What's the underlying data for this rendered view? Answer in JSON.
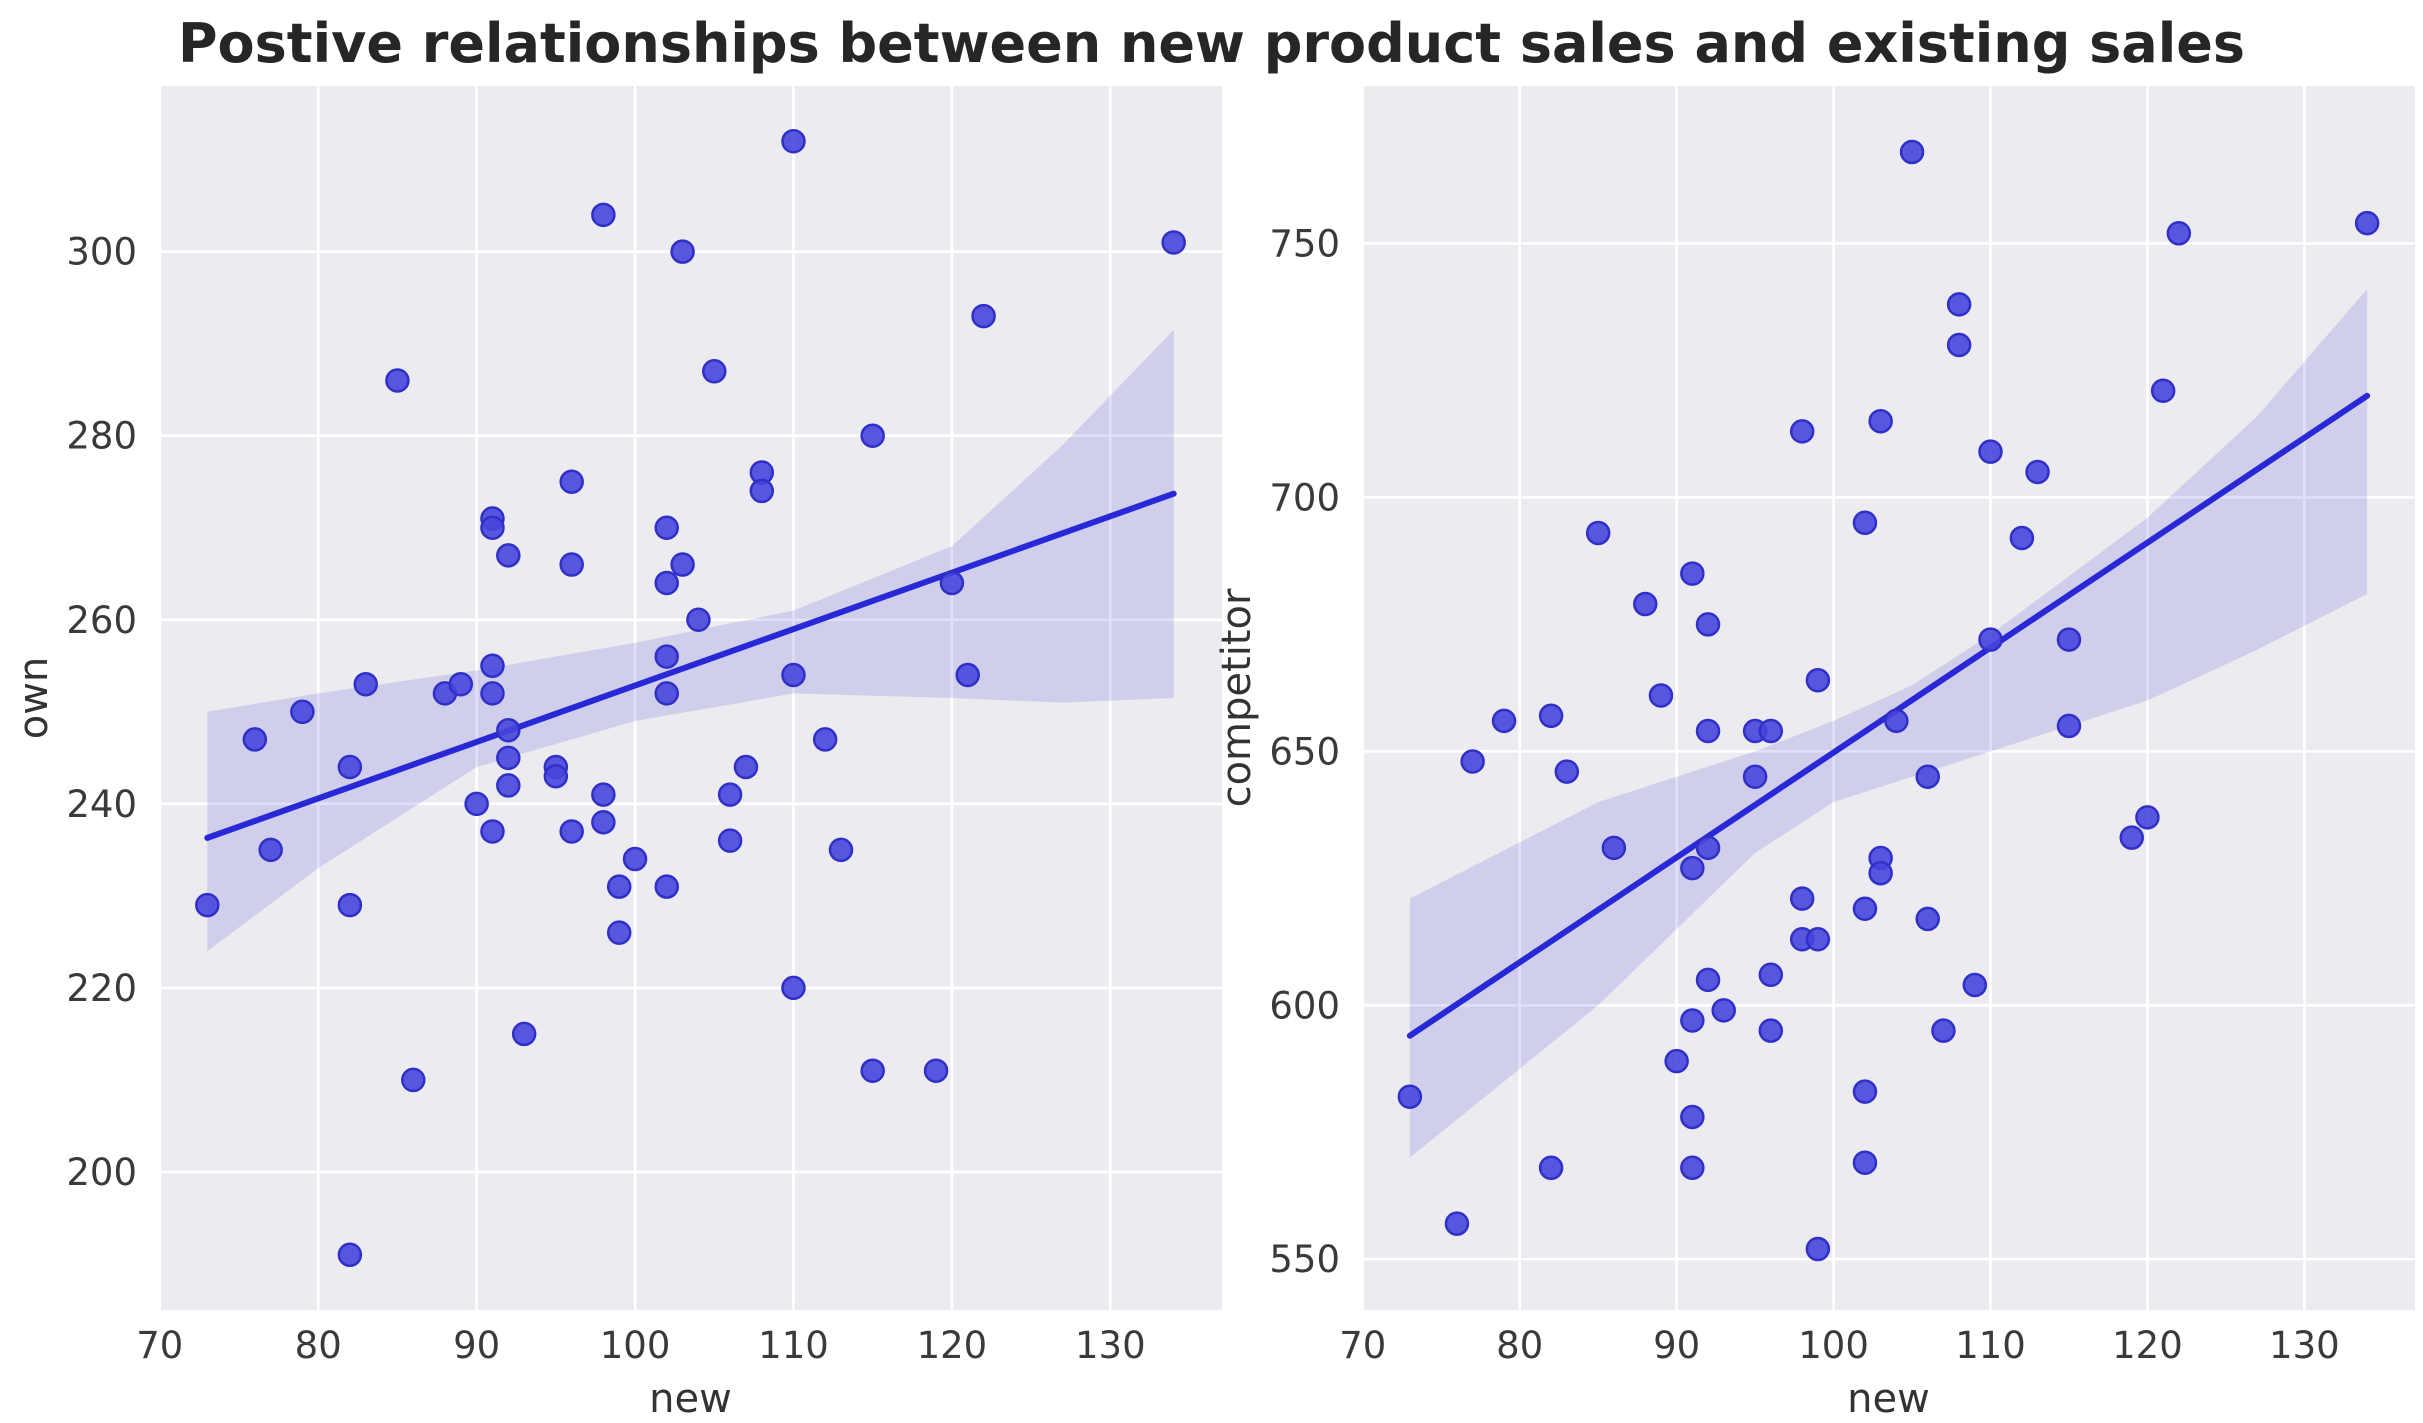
{
  "figure": {
    "title": "Postive relationships between new product sales and existing sales"
  },
  "colors": {
    "plot_bg": "#ebebf0",
    "grid": "#ffffff",
    "point_fill": "#4646dd",
    "point_edge": "#3030c8",
    "line": "#2828d7",
    "band": "rgba(70,70,215,0.17)",
    "tick_text": "#3a3a3a",
    "label_text": "#333333"
  },
  "chart_data": [
    {
      "type": "scatter",
      "panel": "left",
      "xlabel": "new",
      "ylabel": "own",
      "x_ticks": [
        70,
        80,
        90,
        100,
        110,
        120,
        130
      ],
      "y_ticks": [
        200,
        220,
        240,
        260,
        280,
        300
      ],
      "xlim": [
        69.95,
        137.05
      ],
      "ylim": [
        185,
        318
      ],
      "grid": true,
      "legend": null,
      "points": [
        [
          73,
          229
        ],
        [
          76,
          247
        ],
        [
          77,
          235
        ],
        [
          79,
          250
        ],
        [
          82,
          244
        ],
        [
          82,
          229
        ],
        [
          82,
          191
        ],
        [
          83,
          253
        ],
        [
          85,
          286
        ],
        [
          86,
          210
        ],
        [
          88,
          252
        ],
        [
          89,
          253
        ],
        [
          90,
          240
        ],
        [
          91,
          255
        ],
        [
          91,
          252
        ],
        [
          91,
          271
        ],
        [
          91,
          270
        ],
        [
          91,
          237
        ],
        [
          92,
          267
        ],
        [
          92,
          248
        ],
        [
          92,
          245
        ],
        [
          92,
          242
        ],
        [
          93,
          215
        ],
        [
          95,
          244
        ],
        [
          95,
          243
        ],
        [
          96,
          275
        ],
        [
          96,
          266
        ],
        [
          96,
          237
        ],
        [
          98,
          304
        ],
        [
          98,
          241
        ],
        [
          98,
          238
        ],
        [
          99,
          231
        ],
        [
          99,
          226
        ],
        [
          100,
          234
        ],
        [
          102,
          270
        ],
        [
          102,
          264
        ],
        [
          102,
          256
        ],
        [
          102,
          252
        ],
        [
          102,
          231
        ],
        [
          103,
          300
        ],
        [
          103,
          266
        ],
        [
          104,
          260
        ],
        [
          105,
          287
        ],
        [
          106,
          241
        ],
        [
          106,
          236
        ],
        [
          107,
          244
        ],
        [
          108,
          276
        ],
        [
          108,
          274
        ],
        [
          110,
          312
        ],
        [
          110,
          254
        ],
        [
          110,
          220
        ],
        [
          112,
          247
        ],
        [
          113,
          235
        ],
        [
          115,
          280
        ],
        [
          115,
          211
        ],
        [
          119,
          211
        ],
        [
          120,
          264
        ],
        [
          121,
          254
        ],
        [
          122,
          293
        ],
        [
          134,
          301
        ]
      ],
      "regression": {
        "x": [
          73,
          134
        ],
        "y": [
          236.3,
          273.7
        ]
      },
      "ci_band": {
        "x": [
          73,
          80,
          90,
          100,
          110,
          120,
          127,
          134
        ],
        "upper": [
          250,
          252,
          254.5,
          257.5,
          261,
          268,
          279,
          291.5
        ],
        "lower": [
          224,
          233,
          244,
          249,
          252,
          251.5,
          251,
          251.5
        ]
      }
    },
    {
      "type": "scatter",
      "panel": "right",
      "xlabel": "new",
      "ylabel": "competitor",
      "x_ticks": [
        70,
        80,
        90,
        100,
        110,
        120,
        130
      ],
      "y_ticks": [
        550,
        600,
        650,
        700,
        750
      ],
      "xlim": [
        69.95,
        137.05
      ],
      "ylim": [
        540,
        781
      ],
      "grid": true,
      "legend": null,
      "points": [
        [
          73,
          582
        ],
        [
          76,
          557
        ],
        [
          77,
          648
        ],
        [
          79,
          656
        ],
        [
          82,
          657
        ],
        [
          83,
          646
        ],
        [
          82,
          568
        ],
        [
          85,
          693
        ],
        [
          86,
          631
        ],
        [
          88,
          679
        ],
        [
          89,
          661
        ],
        [
          90,
          589
        ],
        [
          91,
          685
        ],
        [
          91,
          627
        ],
        [
          91,
          597
        ],
        [
          91,
          578
        ],
        [
          91,
          568
        ],
        [
          92,
          675
        ],
        [
          92,
          654
        ],
        [
          92,
          631
        ],
        [
          92,
          605
        ],
        [
          93,
          599
        ],
        [
          95,
          654
        ],
        [
          95,
          645
        ],
        [
          96,
          654
        ],
        [
          96,
          606
        ],
        [
          96,
          595
        ],
        [
          98,
          713
        ],
        [
          98,
          621
        ],
        [
          98,
          613
        ],
        [
          99,
          613
        ],
        [
          99,
          552
        ],
        [
          99,
          664
        ],
        [
          102,
          695
        ],
        [
          102,
          619
        ],
        [
          102,
          583
        ],
        [
          102,
          569
        ],
        [
          103,
          715
        ],
        [
          103,
          629
        ],
        [
          103,
          626
        ],
        [
          104,
          656
        ],
        [
          105,
          768
        ],
        [
          106,
          645
        ],
        [
          106,
          617
        ],
        [
          107,
          595
        ],
        [
          108,
          738
        ],
        [
          108,
          730
        ],
        [
          109,
          604
        ],
        [
          110,
          709
        ],
        [
          110,
          672
        ],
        [
          112,
          692
        ],
        [
          113,
          705
        ],
        [
          115,
          672
        ],
        [
          115,
          655
        ],
        [
          119,
          633
        ],
        [
          120,
          637
        ],
        [
          121,
          721
        ],
        [
          122,
          752
        ],
        [
          134,
          754
        ]
      ],
      "regression": {
        "x": [
          73,
          134
        ],
        "y": [
          594,
          720
        ]
      },
      "ci_band": {
        "x": [
          73,
          85,
          95,
          100,
          105,
          110,
          120,
          127,
          134
        ],
        "upper": [
          621,
          640,
          650,
          656,
          663,
          673,
          696,
          716,
          741
        ],
        "lower": [
          570,
          600,
          630,
          640,
          645,
          650,
          660,
          670,
          681
        ]
      }
    }
  ]
}
